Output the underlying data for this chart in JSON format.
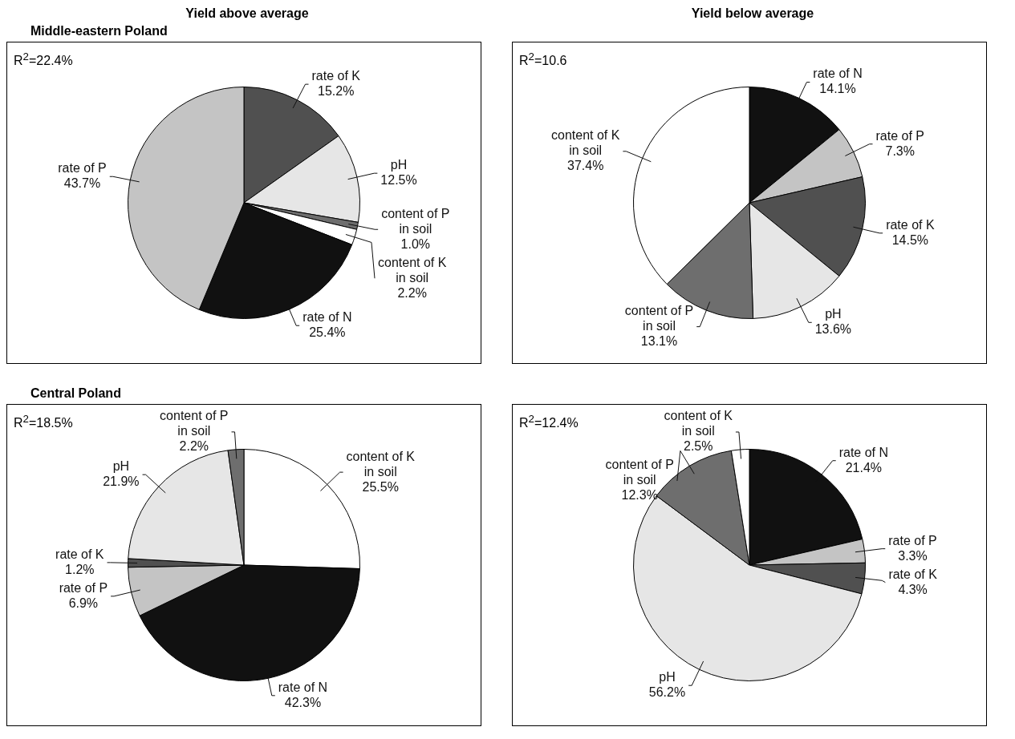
{
  "chart_data": [
    {
      "type": "pie",
      "title": "Yield above average",
      "subtitle": "Middle-eastern Poland",
      "annotations": [
        "R$^{2}$=22.4%"
      ],
      "categories": [
        "rate of K",
        "pH",
        "content of P in soil",
        "content of K in soil",
        "rate of N",
        "rate of P"
      ],
      "values": [
        15.2,
        12.5,
        1.0,
        2.2,
        25.4,
        43.7
      ],
      "value_labels": [
        "15.2%",
        "12.5%",
        "1.0%",
        "2.2%",
        "25.4%",
        "43.7%"
      ],
      "colors": [
        "#505050",
        "#e6e6e6",
        "#6e6e6e",
        "#ffffff",
        "#111111",
        "#c4c4c4"
      ],
      "legend": false
    },
    {
      "type": "pie",
      "title": "Yield below average",
      "annotations": [
        "R$^{2}$=10.6"
      ],
      "categories": [
        "rate of N",
        "rate of P",
        "rate of K",
        "pH",
        "content of P in soil",
        "content of K in soil"
      ],
      "values": [
        14.1,
        7.3,
        14.5,
        13.6,
        13.1,
        37.4
      ],
      "value_labels": [
        "14.1%",
        "7.3%",
        "14.5%",
        "13.6%",
        "13.1%",
        "37.4%"
      ],
      "colors": [
        "#111111",
        "#c4c4c4",
        "#505050",
        "#e6e6e6",
        "#6e6e6e",
        "#ffffff"
      ],
      "legend": false
    },
    {
      "type": "pie",
      "subtitle": "Central Poland",
      "annotations": [
        "R$^{2}$=18.5%"
      ],
      "categories": [
        "content of K in soil",
        "rate of N",
        "rate of P",
        "rate of K",
        "pH",
        "content of P in soil"
      ],
      "values": [
        25.5,
        42.3,
        6.9,
        1.2,
        21.9,
        2.2
      ],
      "value_labels": [
        "25.5%",
        "42.3%",
        "6.9%",
        "1.2%",
        "21.9%",
        "2.2%"
      ],
      "colors": [
        "#ffffff",
        "#111111",
        "#c4c4c4",
        "#505050",
        "#e6e6e6",
        "#6e6e6e"
      ],
      "legend": false
    },
    {
      "type": "pie",
      "annotations": [
        "R$^{2}$=12.4%"
      ],
      "categories": [
        "rate of N",
        "rate of P",
        "rate of K",
        "pH",
        "content of P in soil",
        "content of K in soil"
      ],
      "values": [
        21.4,
        3.3,
        4.3,
        56.2,
        12.3,
        2.5
      ],
      "value_labels": [
        "21.4%",
        "3.3%",
        "4.3%",
        "56.2%",
        "12.3%",
        "2.5%"
      ],
      "colors": [
        "#111111",
        "#c4c4c4",
        "#505050",
        "#e6e6e6",
        "#6e6e6e",
        "#ffffff"
      ],
      "legend": false
    }
  ]
}
